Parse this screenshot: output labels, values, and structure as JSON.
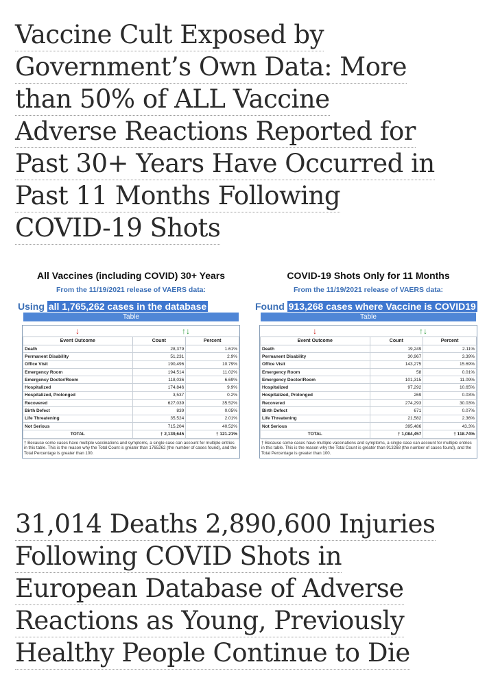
{
  "headline_top": {
    "lines": [
      "Vaccine Cult Exposed by",
      "Government’s Own Data: More",
      "than 50% of ALL Vaccine",
      "Adverse Reactions Reported for",
      "Past 30+ Years Have Occurred in",
      "Past 11 Months Following",
      "COVID-19 Shots"
    ]
  },
  "figure": {
    "left": {
      "title": "All Vaccines (including COVID) 30+ Years",
      "release": "From the 11/19/2021 release of VAERS data:",
      "found_prefix": "Using",
      "found_highlight": "all 1,765,262 cases in the database",
      "table_label": "Table",
      "arrow_down": "↓",
      "arrows_updown": "↑↓",
      "columns": [
        "Event Outcome",
        "Count",
        "Percent"
      ],
      "rows": [
        [
          "Death",
          "28,379",
          "1.61%"
        ],
        [
          "Permanent Disability",
          "51,231",
          "2.9%"
        ],
        [
          "Office Visit",
          "190,496",
          "10.79%"
        ],
        [
          "Emergency Room",
          "194,514",
          "11.02%"
        ],
        [
          "Emergency Doctor/Room",
          "118,036",
          "6.69%"
        ],
        [
          "Hospitalized",
          "174,846",
          "9.9%"
        ],
        [
          "Hospitalized, Prolonged",
          "3,537",
          "0.2%"
        ],
        [
          "Recovered",
          "627,039",
          "35.52%"
        ],
        [
          "Birth Defect",
          "839",
          "0.05%"
        ],
        [
          "Life Threatening",
          "35,524",
          "2.01%"
        ],
        [
          "Not Serious",
          "715,204",
          "40.52%"
        ]
      ],
      "total": [
        "TOTAL",
        "† 2,139,645",
        "† 121.21%"
      ],
      "footnote": "† Because some cases have multiple vaccinations and symptoms, a single case can account for multiple entries in this table. This is the reason why the Total Count is greater than 1765262 (the number of cases found), and the Total Percentage is greater than 100."
    },
    "right": {
      "title": "COVID-19 Shots Only for 11 Months",
      "release": "From the 11/19/2021 release of VAERS data:",
      "found_prefix": "Found",
      "found_highlight": "913,268 cases where Vaccine is COVID19",
      "table_label": "Table",
      "arrow_down": "↓",
      "arrows_updown": "↑↓",
      "columns": [
        "Event Outcome",
        "Count",
        "Percent"
      ],
      "rows": [
        [
          "Death",
          "19,249",
          "2.11%"
        ],
        [
          "Permanent Disability",
          "30,967",
          "3.39%"
        ],
        [
          "Office Visit",
          "143,275",
          "15.69%"
        ],
        [
          "Emergency Room",
          "58",
          "0.01%"
        ],
        [
          "Emergency Doctor/Room",
          "101,315",
          "11.09%"
        ],
        [
          "Hospitalized",
          "97,292",
          "10.65%"
        ],
        [
          "Hospitalized, Prolonged",
          "269",
          "0.03%"
        ],
        [
          "Recovered",
          "274,293",
          "30.03%"
        ],
        [
          "Birth Defect",
          "671",
          "0.07%"
        ],
        [
          "Life Threatening",
          "21,582",
          "2.36%"
        ],
        [
          "Not Serious",
          "395,486",
          "43.3%"
        ]
      ],
      "total": [
        "TOTAL",
        "† 1,084,457",
        "† 118.74%"
      ],
      "footnote": "† Because some cases have multiple vaccinations and symptoms, a single case can account for multiple entries in this table. This is the reason why the Total Count is greater than 913268 (the number of cases found), and the Total Percentage is greater than 100."
    }
  },
  "headline_bottom": {
    "lines": [
      "31,014 Deaths 2,890,600 Injuries",
      "Following COVID Shots in",
      "European Database of Adverse",
      "Reactions as Young, Previously",
      "Healthy People Continue to Die"
    ]
  },
  "colors": {
    "headline_text": "#2b2b2b",
    "accent_blue": "#3b6fb6",
    "highlight_blue": "#3f77cf",
    "arrow_red": "#cc2222",
    "arrow_green": "#2a9a3a"
  }
}
